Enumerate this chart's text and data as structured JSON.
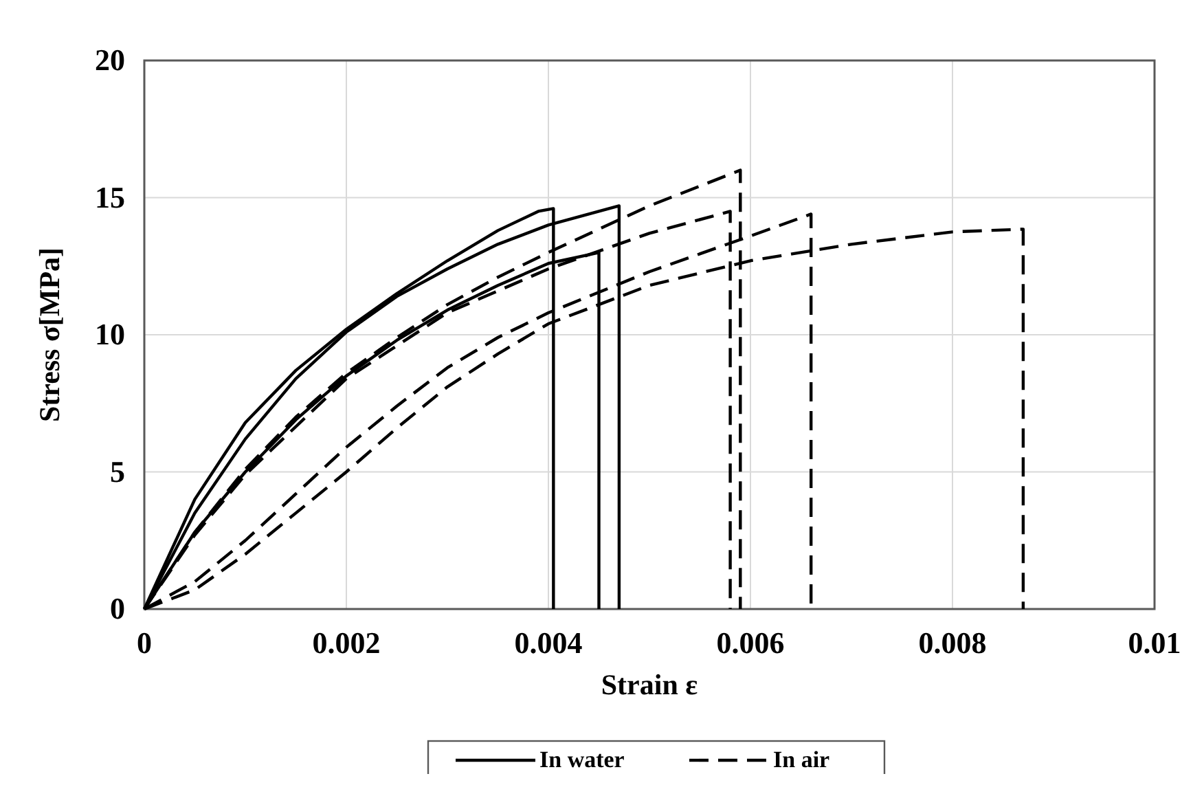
{
  "chart_data": {
    "type": "line",
    "xlabel": "Strain ε",
    "ylabel": "Stress σ[MPa]",
    "xlim": [
      0,
      0.01
    ],
    "xticks": [
      0,
      0.002,
      0.004,
      0.006,
      0.008,
      0.01
    ],
    "ylim": [
      0,
      20
    ],
    "yticks": [
      0,
      5,
      10,
      15,
      20
    ],
    "grid": true,
    "legend": "bottom",
    "series": [
      {
        "name": "In water",
        "color": "#000000",
        "line_style": "solid",
        "x": [
          0,
          0.0005,
          0.001,
          0.0015,
          0.002,
          0.0025,
          0.003,
          0.0035,
          0.0039,
          0.00405,
          0.00405
        ],
        "values": [
          0,
          4,
          6.8,
          8.7,
          10.2,
          11.5,
          12.7,
          13.8,
          14.5,
          14.6,
          0
        ]
      },
      {
        "color": "#000000",
        "line_style": "solid",
        "x": [
          0,
          0.0005,
          0.001,
          0.0015,
          0.002,
          0.0025,
          0.003,
          0.0035,
          0.004,
          0.0047,
          0.0047
        ],
        "values": [
          0,
          3.5,
          6.2,
          8.4,
          10.1,
          11.4,
          12.4,
          13.3,
          14.0,
          14.7,
          0
        ]
      },
      {
        "color": "#000000",
        "line_style": "solid",
        "x": [
          0,
          0.0005,
          0.001,
          0.0015,
          0.002,
          0.0025,
          0.003,
          0.0035,
          0.004,
          0.0045,
          0.0045
        ],
        "values": [
          0,
          2.8,
          5,
          6.9,
          8.5,
          9.8,
          10.9,
          11.8,
          12.6,
          13.0,
          0
        ]
      },
      {
        "name": "In air",
        "color": "#000000",
        "line_style": "dashed",
        "x": [
          0,
          0.0005,
          0.001,
          0.0015,
          0.002,
          0.0025,
          0.003,
          0.0035,
          0.004,
          0.005,
          0.0059,
          0.0059
        ],
        "values": [
          0,
          2.8,
          5.1,
          7,
          8.6,
          9.9,
          11.1,
          12.1,
          13.0,
          14.7,
          16.0,
          0
        ]
      },
      {
        "color": "#000000",
        "line_style": "dashed",
        "x": [
          0,
          0.0005,
          0.001,
          0.002,
          0.003,
          0.004,
          0.005,
          0.0058,
          0.0058
        ],
        "values": [
          0,
          2.7,
          4.9,
          8.4,
          10.8,
          12.4,
          13.7,
          14.5,
          0
        ]
      },
      {
        "color": "#000000",
        "line_style": "dashed",
        "x": [
          0,
          0.0005,
          0.001,
          0.0015,
          0.002,
          0.0025,
          0.003,
          0.0035,
          0.004,
          0.005,
          0.006,
          0.0066,
          0.0066
        ],
        "values": [
          0,
          1,
          2.5,
          4.2,
          5.9,
          7.4,
          8.8,
          9.9,
          10.8,
          12.3,
          13.6,
          14.4,
          0
        ]
      },
      {
        "color": "#000000",
        "line_style": "dashed",
        "x": [
          0,
          0.0005,
          0.001,
          0.0015,
          0.002,
          0.0025,
          0.003,
          0.0035,
          0.004,
          0.005,
          0.006,
          0.007,
          0.008,
          0.0087,
          0.0087
        ],
        "values": [
          0,
          0.7,
          2,
          3.5,
          5,
          6.6,
          8.1,
          9.3,
          10.4,
          11.8,
          12.7,
          13.3,
          13.75,
          13.85,
          0
        ]
      }
    ]
  }
}
